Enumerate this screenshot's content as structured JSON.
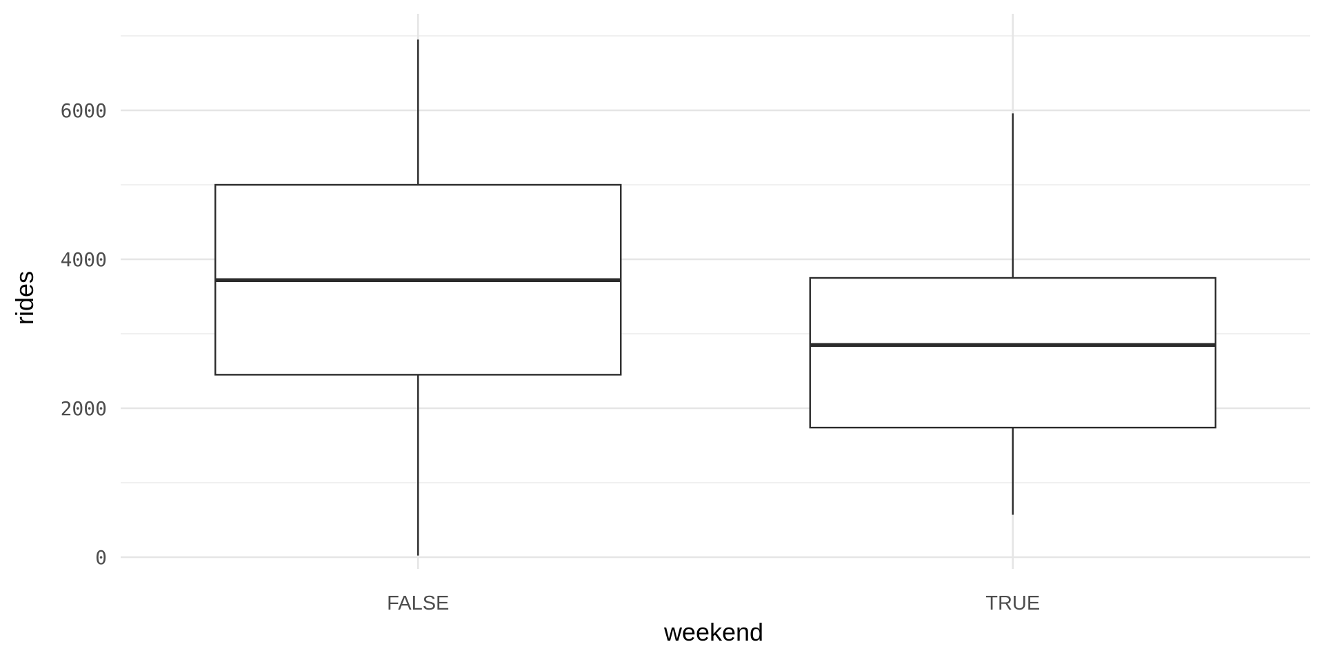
{
  "chart_data": {
    "type": "boxplot",
    "xlabel": "weekend",
    "ylabel": "rides",
    "categories": [
      "FALSE",
      "TRUE"
    ],
    "ylim": [
      -100,
      7250
    ],
    "y_ticks": [
      0,
      2000,
      4000,
      6000
    ],
    "y_tick_labels": [
      "0",
      "2000",
      "4000",
      "6000"
    ],
    "y_minor_ticks": [
      1000,
      3000,
      5000,
      7000
    ],
    "grid": true,
    "legend": "none",
    "boxes": [
      {
        "category": "FALSE",
        "min": 22,
        "q1": 2450,
        "median": 3720,
        "q3": 5000,
        "max": 6950
      },
      {
        "category": "TRUE",
        "min": 570,
        "q1": 1740,
        "median": 2850,
        "q3": 3750,
        "max": 5960
      }
    ]
  }
}
